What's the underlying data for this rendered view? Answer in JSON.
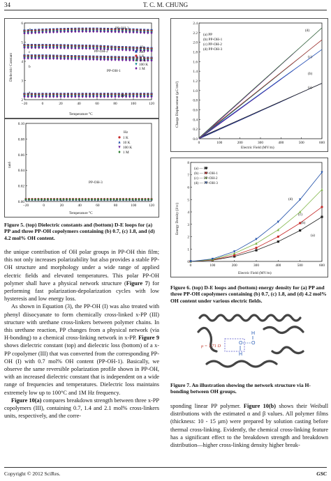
{
  "header": {
    "page_number": "34",
    "authors": "T. C. M. CHUNG"
  },
  "fig5_top": {
    "ylabel": "Dielectric Constant",
    "xlabel": "Temperature °C",
    "xticks": [
      "−20",
      "0",
      "20",
      "40",
      "60",
      "80",
      "100",
      "120"
    ],
    "yticks": [
      "6",
      "5",
      "4",
      "3",
      "2"
    ],
    "legend_title": "Hz",
    "legend": [
      "100",
      "1 K",
      "10 K",
      "100 K",
      "1 M"
    ],
    "labels": {
      "d": "d",
      "c": "c",
      "b": "b",
      "a": "a",
      "ppoh3": "PP-OH-3",
      "ppoh2": "PP-OH-2",
      "ppoh1": "PP-OH-1",
      "pp": "PP"
    }
  },
  "fig5_bottom": {
    "ylabel": "tanδ",
    "xlabel": "Temperature °C",
    "xticks": [
      "−20",
      "0",
      "20",
      "40",
      "60",
      "80",
      "100",
      "120"
    ],
    "yticks": [
      "0.10",
      "0.08",
      "0.06",
      "0.04",
      "0.02",
      "0.00"
    ],
    "legend_title": "Hz",
    "legend": [
      "1 K",
      "10 K",
      "100 K",
      "1 M"
    ],
    "series_label": "PP-OH-3"
  },
  "fig6_top": {
    "ylabel": "Charge Displacement (μC/cm²)",
    "xlabel": "Electric Field (MV/m)",
    "xticks": [
      "0",
      "100",
      "200",
      "300",
      "400",
      "500",
      "600"
    ],
    "yticks": [
      "0.0",
      "0.2",
      "0.4",
      "0.6",
      "0.8",
      "1.0",
      "1.2",
      "1.4",
      "1.6",
      "1.8",
      "2.0",
      "2.2",
      "2.4"
    ],
    "legend": [
      "(a) PP",
      "(b) PP-OH-1",
      "(c) PP-OH-2",
      "(d) PP-OH-3"
    ],
    "curve_labels": [
      "(a)",
      "(b)",
      "(c)",
      "(d)"
    ]
  },
  "fig6_bottom": {
    "ylabel": "Energy Density (J/cc)",
    "xlabel": "Electric Field (MV/m)",
    "xticks": [
      "0",
      "100",
      "200",
      "300",
      "400",
      "500",
      "600"
    ],
    "yticks": [
      "0",
      "1",
      "2",
      "3",
      "4",
      "5",
      "6",
      "7",
      "8"
    ],
    "legend": [
      "(a) — PP",
      "(b) — PP-OH-1",
      "(c) — PP-OH-2",
      "(d) — PP-OH-3"
    ],
    "curve_labels": [
      "(a)",
      "(b)",
      "(c)",
      "(d)"
    ]
  },
  "fig7": {
    "dipole_label": "μ = 1.71 D",
    "atoms": [
      "H",
      "O",
      "O",
      "H"
    ]
  },
  "chart_data": [
    {
      "type": "line",
      "title": "",
      "xlabel": "Temperature °C",
      "ylabel": "Dielectric Constant",
      "xlim": [
        -20,
        120
      ],
      "ylim": [
        2,
        6
      ],
      "series": [
        {
          "name": "PP-OH-3",
          "x": [
            -20,
            0,
            20,
            40,
            60,
            80,
            100,
            120
          ],
          "values": [
            5.6,
            5.65,
            5.68,
            5.7,
            5.7,
            5.68,
            5.66,
            5.62
          ]
        },
        {
          "name": "PP-OH-2",
          "x": [
            -20,
            0,
            20,
            40,
            60,
            80,
            100,
            120
          ],
          "values": [
            4.85,
            4.85,
            4.84,
            4.82,
            4.8,
            4.75,
            4.72,
            4.68
          ]
        },
        {
          "name": "PP-OH-1",
          "x": [
            -20,
            0,
            20,
            40,
            60,
            80,
            100,
            120
          ],
          "values": [
            4.3,
            4.3,
            4.28,
            4.26,
            4.24,
            4.22,
            4.2,
            4.18
          ]
        },
        {
          "name": "PP",
          "x": [
            -20,
            0,
            20,
            40,
            60,
            80,
            100,
            120
          ],
          "values": [
            2.3,
            2.3,
            2.3,
            2.3,
            2.3,
            2.3,
            2.3,
            2.3
          ]
        }
      ]
    },
    {
      "type": "line",
      "title": "",
      "xlabel": "Temperature °C",
      "ylabel": "tanδ",
      "xlim": [
        -20,
        120
      ],
      "ylim": [
        0,
        0.1
      ],
      "series": [
        {
          "name": "1 K",
          "x": [
            -20,
            0,
            20,
            40,
            60,
            80,
            100,
            120
          ],
          "values": [
            0.003,
            0.003,
            0.003,
            0.003,
            0.003,
            0.003,
            0.003,
            0.003
          ]
        },
        {
          "name": "10 K",
          "x": [
            -20,
            0,
            20,
            40,
            60,
            80,
            100,
            120
          ],
          "values": [
            0.002,
            0.002,
            0.002,
            0.002,
            0.002,
            0.002,
            0.002,
            0.002
          ]
        },
        {
          "name": "100 K",
          "x": [
            -20,
            0,
            20,
            40,
            60,
            80,
            100,
            120
          ],
          "values": [
            0.001,
            0.001,
            0.001,
            0.001,
            0.001,
            0.001,
            0.001,
            0.001
          ]
        },
        {
          "name": "1 M",
          "x": [
            -20,
            0,
            20,
            40,
            60,
            80,
            100,
            120
          ],
          "values": [
            0.001,
            0.001,
            0.001,
            0.001,
            0.001,
            0.001,
            0.001,
            0.001
          ]
        }
      ]
    },
    {
      "type": "line",
      "title": "",
      "xlabel": "Electric Field (MV/m)",
      "ylabel": "Charge Displacement (μC/cm²)",
      "xlim": [
        0,
        600
      ],
      "ylim": [
        0,
        2.4
      ],
      "series": [
        {
          "name": "(a) PP",
          "x": [
            0,
            600
          ],
          "values": [
            0,
            1.15
          ]
        },
        {
          "name": "(b) PP-OH-1",
          "x": [
            0,
            600
          ],
          "values": [
            0,
            1.85
          ]
        },
        {
          "name": "(c) PP-OH-2",
          "x": [
            0,
            600
          ],
          "values": [
            0,
            2.05
          ]
        },
        {
          "name": "(d) PP-OH-3",
          "x": [
            0,
            600
          ],
          "values": [
            0,
            2.3
          ]
        }
      ]
    },
    {
      "type": "line",
      "title": "",
      "xlabel": "Electric Field (MV/m)",
      "ylabel": "Energy Density (J/cc)",
      "xlim": [
        0,
        600
      ],
      "ylim": [
        0,
        8
      ],
      "series": [
        {
          "name": "PP",
          "x": [
            0,
            100,
            200,
            300,
            400,
            500,
            600
          ],
          "values": [
            0,
            0.1,
            0.4,
            0.9,
            1.6,
            2.5,
            3.6
          ]
        },
        {
          "name": "PP-OH-1",
          "x": [
            0,
            100,
            200,
            300,
            400,
            500,
            600
          ],
          "values": [
            0,
            0.12,
            0.5,
            1.1,
            2.0,
            3.1,
            4.4
          ]
        },
        {
          "name": "PP-OH-2",
          "x": [
            0,
            100,
            200,
            300,
            400,
            500,
            600
          ],
          "values": [
            0,
            0.15,
            0.65,
            1.45,
            2.55,
            4.0,
            5.8
          ]
        },
        {
          "name": "PP-OH-3",
          "x": [
            0,
            100,
            200,
            300,
            400,
            500,
            600
          ],
          "values": [
            0,
            0.2,
            0.8,
            1.8,
            3.2,
            5.0,
            7.2
          ]
        }
      ]
    }
  ],
  "captions": {
    "fig5": "Figure 5. (top) Dielectric constants and (bottom) D-E loops for (a) PP and three PP-OH copolymers containing (b) 0.7, (c) 1.8, and (d) 4.2 mol% OH content.",
    "fig6": "Figure 6. (top) D-E loops and (bottom) energy density for (a) PP and three PP-OH copolymers containing (b) 0.7, (c) 1.8, and (d) 4.2 mol% OH content under various electric fields.",
    "fig7": "Figure 7. An illustration showing the network structure via H-bonding between OH groups."
  },
  "left_text": {
    "p1a": "the unique contribution of OH polar groups in PP-OH thin film; this not only increases polarizability but also provides a stable PP-OH structure and morphology under a wide range of applied electric fields and elevated temperatures. This polar PP-OH polymer shall have a physical network structure (",
    "p1_ref": "Figure 7",
    "p1b": ") for performing fast polarization-depolarization cycles with low hysteresis and low energy loss.",
    "p2a": "As shown in Equation (3), the PP-OH (I) was also treated with phenyl diisocyanate to form chemically cross-linked x-PP (III) structure with urethane cross-linkers between polymer chains. In this urethane reaction, PP changes from a physical network (via H-bonding) to a chemical cross-linking network in x-PP. ",
    "p2_ref": "Figure 9",
    "p2b": " shows dielectric constant (top) and dielectric loss (bottom) of a x-PP copolymer (III) that was converted from the corresponding PP-OH (I) with 0.7 mol% OH content (PP-OH-1). Basically, we observe the same reversible polarization profile shown in PP-OH, with an increased dielectric constant that is independent on a wide range of frequencies and temperatures. Dielectric loss maintains extremely low up to 100°C and 1M Hz frequency.",
    "p3_ref": "Figure 10(a)",
    "p3b": " compares breakdown strength between three x-PP copolymers (III), containing 0.7, 1.4 and 2.1 mol% cross-linkers units, respectively, and the corre-"
  },
  "right_text": {
    "a": "sponding linear PP polymer. ",
    "ref": "Figure 10(b)",
    "b": " shows their Weibull distributions with the estimated α and β values. All polymer films (thickness: 10 - 15 μm) were prepared by solution casting before thermal cross-linking. Evidently, the chemical cross-linking feature has a significant effect to the breakdown strength and breakdown distribution—higher cross-linking density higher break-"
  },
  "footer": {
    "copyright": "Copyright © 2012 SciRes.",
    "journal": "GSC"
  }
}
